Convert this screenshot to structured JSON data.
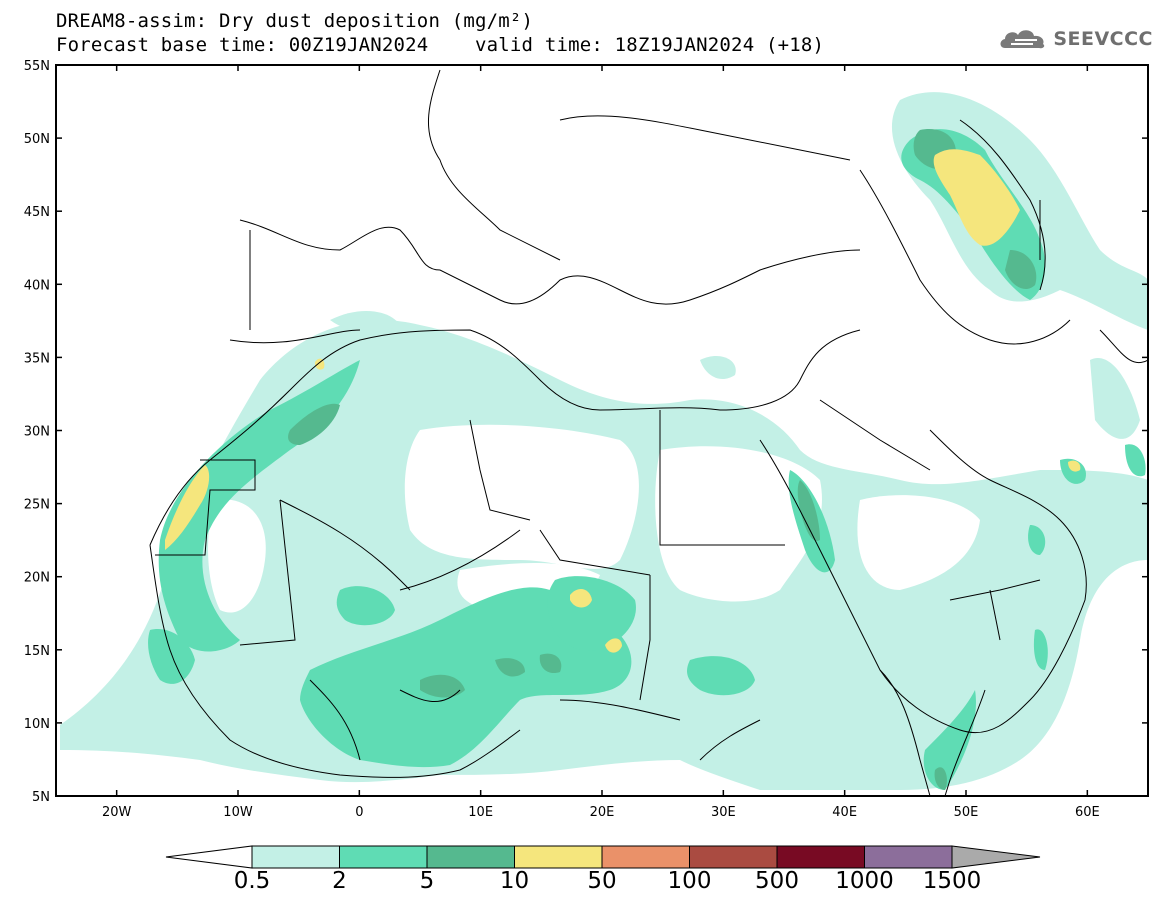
{
  "title": {
    "line1": "DREAM8-assim: Dry dust deposition (mg/m²)",
    "line2": "Forecast base time: 00Z19JAN2024    valid time: 18Z19JAN2024 (+18)"
  },
  "logo": {
    "text": "SEEVCCC",
    "icon": "cloud-icon"
  },
  "map": {
    "lon_range": [
      -25,
      65
    ],
    "lat_range": [
      5,
      55
    ],
    "lat_ticks": [
      {
        "value": 55,
        "label": "55N"
      },
      {
        "value": 50,
        "label": "50N"
      },
      {
        "value": 45,
        "label": "45N"
      },
      {
        "value": 40,
        "label": "40N"
      },
      {
        "value": 35,
        "label": "35N"
      },
      {
        "value": 30,
        "label": "30N"
      },
      {
        "value": 25,
        "label": "25N"
      },
      {
        "value": 20,
        "label": "20N"
      },
      {
        "value": 15,
        "label": "15N"
      },
      {
        "value": 10,
        "label": "10N"
      },
      {
        "value": 5,
        "label": "5N"
      }
    ],
    "lon_ticks": [
      {
        "value": -20,
        "label": "20W"
      },
      {
        "value": -10,
        "label": "10W"
      },
      {
        "value": 0,
        "label": "0"
      },
      {
        "value": 10,
        "label": "10E"
      },
      {
        "value": 20,
        "label": "20E"
      },
      {
        "value": 30,
        "label": "30E"
      },
      {
        "value": 40,
        "label": "40E"
      },
      {
        "value": 50,
        "label": "50E"
      },
      {
        "value": 60,
        "label": "60E"
      }
    ],
    "colorbar": {
      "labels": [
        "0.5",
        "2",
        "5",
        "10",
        "50",
        "100",
        "500",
        "1000",
        "1500"
      ],
      "colors": [
        "#c3f0e6",
        "#5fdcb4",
        "#55b98f",
        "#f5e67d",
        "#ea9169",
        "#aa4b41",
        "#780a23",
        "#8c6e9b"
      ],
      "under_color": "#ffffff",
      "over_color": "#aaaaaa"
    }
  }
}
